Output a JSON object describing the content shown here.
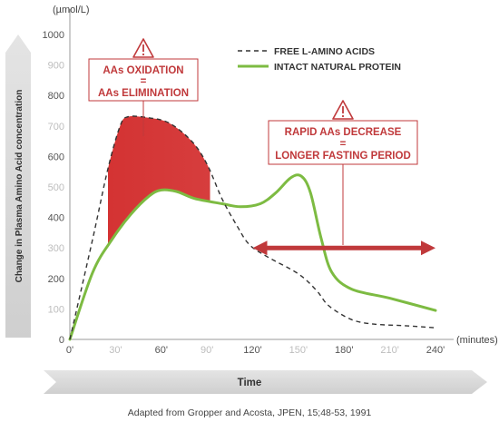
{
  "chart_data": {
    "type": "line",
    "ylabel": "Change in Plasma Amino Acid concentration",
    "y_unit": "(µmol/L)",
    "xlabel": "Time",
    "x_unit": "(minutes)",
    "source": "Adapted from Gropper and Acosta, JPEN, 15;48-53, 1991",
    "xlim": [
      0,
      240
    ],
    "ylim": [
      0,
      1000
    ],
    "x_ticks": [
      {
        "value": 0,
        "label": "0'",
        "faded": false
      },
      {
        "value": 30,
        "label": "30'",
        "faded": true
      },
      {
        "value": 60,
        "label": "60'",
        "faded": false
      },
      {
        "value": 90,
        "label": "90'",
        "faded": true
      },
      {
        "value": 120,
        "label": "120'",
        "faded": false
      },
      {
        "value": 150,
        "label": "150'",
        "faded": true
      },
      {
        "value": 180,
        "label": "180'",
        "faded": false
      },
      {
        "value": 210,
        "label": "210'",
        "faded": true
      },
      {
        "value": 240,
        "label": "240'",
        "faded": false
      }
    ],
    "y_ticks": [
      {
        "value": 0,
        "label": "0",
        "faded": false
      },
      {
        "value": 100,
        "label": "100",
        "faded": true
      },
      {
        "value": 200,
        "label": "200",
        "faded": false
      },
      {
        "value": 300,
        "label": "300",
        "faded": true
      },
      {
        "value": 400,
        "label": "400",
        "faded": false
      },
      {
        "value": 500,
        "label": "500",
        "faded": true
      },
      {
        "value": 600,
        "label": "600",
        "faded": false
      },
      {
        "value": 700,
        "label": "700",
        "faded": true
      },
      {
        "value": 800,
        "label": "800",
        "faded": false
      },
      {
        "value": 900,
        "label": "900",
        "faded": true
      },
      {
        "value": 1000,
        "label": "1000",
        "faded": false
      }
    ],
    "series": [
      {
        "name": "FREE L-AMINO ACIDS",
        "style": "dashed",
        "color": "#333333",
        "points": [
          [
            0,
            0
          ],
          [
            15,
            330
          ],
          [
            25,
            560
          ],
          [
            33,
            700
          ],
          [
            38,
            730
          ],
          [
            50,
            728
          ],
          [
            65,
            710
          ],
          [
            80,
            650
          ],
          [
            90,
            575
          ],
          [
            100,
            460
          ],
          [
            110,
            370
          ],
          [
            118,
            310
          ],
          [
            130,
            270
          ],
          [
            150,
            215
          ],
          [
            162,
            160
          ],
          [
            170,
            110
          ],
          [
            185,
            65
          ],
          [
            200,
            50
          ],
          [
            220,
            45
          ],
          [
            240,
            38
          ]
        ]
      },
      {
        "name": "INTACT NATURAL PROTEIN",
        "style": "solid",
        "color": "#7dbb42",
        "points": [
          [
            0,
            0
          ],
          [
            15,
            220
          ],
          [
            28,
            330
          ],
          [
            40,
            410
          ],
          [
            52,
            470
          ],
          [
            60,
            490
          ],
          [
            70,
            485
          ],
          [
            82,
            462
          ],
          [
            100,
            445
          ],
          [
            112,
            435
          ],
          [
            125,
            445
          ],
          [
            135,
            480
          ],
          [
            145,
            530
          ],
          [
            152,
            535
          ],
          [
            158,
            480
          ],
          [
            165,
            330
          ],
          [
            172,
            220
          ],
          [
            185,
            165
          ],
          [
            210,
            135
          ],
          [
            240,
            95
          ]
        ]
      }
    ],
    "shaded_region": {
      "name": "AAs OXIDATION = AAs ELIMINATION",
      "color": "#d32f2f",
      "x_range": [
        25,
        92
      ]
    },
    "annotations": [
      {
        "id": "oxidation",
        "lines": [
          "AAs OXIDATION",
          "=",
          "AAs ELIMINATION"
        ]
      },
      {
        "id": "decrease",
        "lines": [
          "RAPID AAs DECREASE",
          "=",
          "LONGER FASTING PERIOD"
        ]
      }
    ],
    "double_arrow": {
      "x_range": [
        120,
        240
      ],
      "y": 300,
      "color": "#c0393b"
    },
    "legend": {
      "position": "top-right"
    }
  }
}
